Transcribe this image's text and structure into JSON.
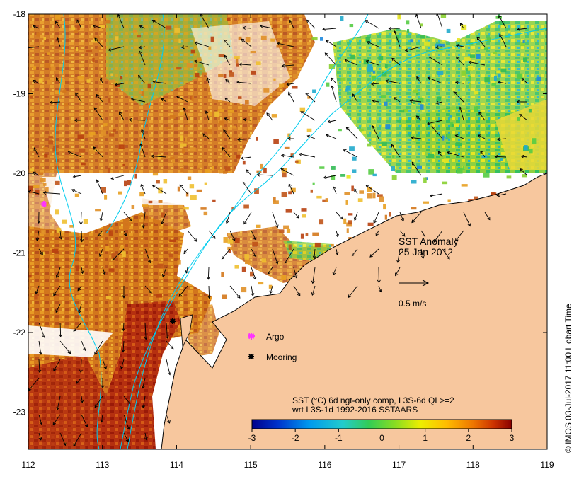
{
  "map": {
    "title": "SST Anomaly",
    "date": "25 Jan 2012",
    "scale_label": "0.5 m/s",
    "copyright": "© IMOS 03-Jul-2017 11:00 Hobart Time",
    "x_ticks": [
      "112",
      "113",
      "114",
      "115",
      "116",
      "117",
      "118",
      "119"
    ],
    "y_ticks": [
      "-18",
      "-19",
      "-20",
      "-21",
      "-22",
      "-23"
    ],
    "legend": [
      {
        "label": "Argo",
        "marker": "magenta-star",
        "color": "#ff33ff"
      },
      {
        "label": "Mooring",
        "marker": "black-star",
        "color": "#000000"
      }
    ],
    "colorbar": {
      "title_line1": "SST (°C) 6d ngt-only comp, L3S-6d QL>=2",
      "title_line2": "wrt L3S-1d 1992-2016 SSTAARS",
      "ticks": [
        "-3",
        "-2",
        "-1",
        "0",
        "1",
        "2",
        "3"
      ],
      "range": [
        -3,
        3
      ],
      "colors": [
        "#00008b",
        "#0033cc",
        "#0077ee",
        "#00bbee",
        "#33cc99",
        "#33cc33",
        "#99dd22",
        "#eeee00",
        "#ffcc00",
        "#ee8800",
        "#dd5500",
        "#bb2200",
        "#880000"
      ]
    },
    "colors": {
      "land": "#f7c79e",
      "bathymetry_contour": "#00ccee",
      "coast": "#000000"
    }
  }
}
